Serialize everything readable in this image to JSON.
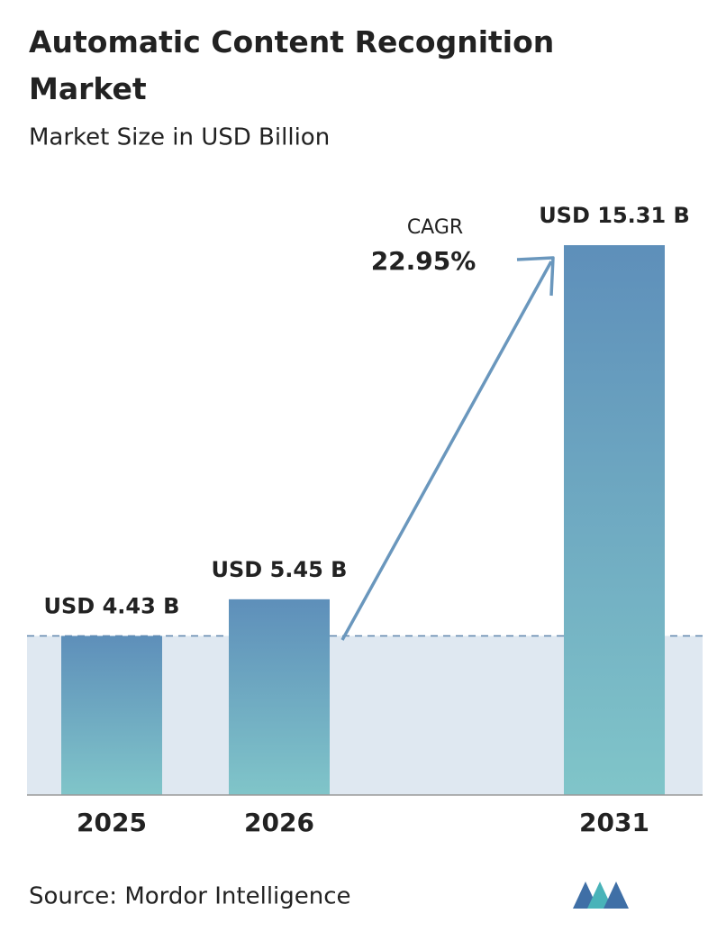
{
  "chart_data": {
    "type": "bar",
    "title": "Automatic Content Recognition Market",
    "subtitle": "Market Size in USD Billion",
    "categories": [
      "2025",
      "2026",
      "2031"
    ],
    "values": [
      4.43,
      5.45,
      15.31
    ],
    "value_labels": [
      "USD 4.43 B",
      "USD 5.45 B",
      "USD 15.31 B"
    ],
    "annotations": [
      "CAGR",
      "22.95%"
    ],
    "source": "Source: Mordor Intelligence"
  }
}
